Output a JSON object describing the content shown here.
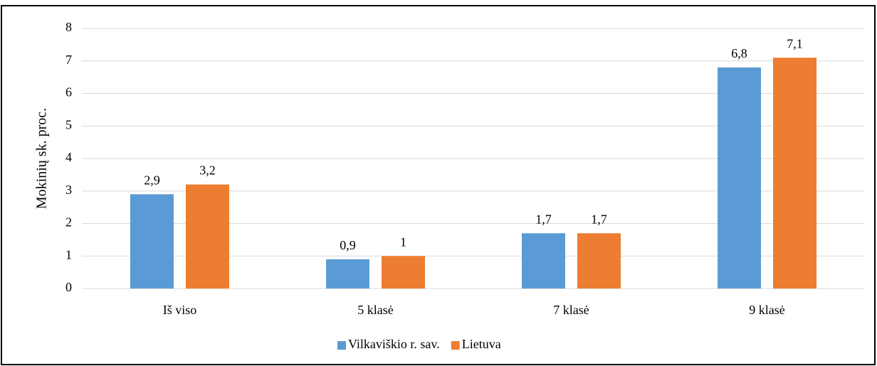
{
  "chart_data": {
    "type": "bar",
    "y_label": "Mokinių sk. proc.",
    "categories": [
      "Iš viso",
      "5 klasė",
      "7 klasė",
      "9 klasė"
    ],
    "series": [
      {
        "name": "Vilkaviškio r. sav.",
        "color": "#5b9bd5",
        "values": [
          2.9,
          0.9,
          1.7,
          6.8
        ],
        "value_labels": [
          "2,9",
          "0,9",
          "1,7",
          "6,8"
        ]
      },
      {
        "name": "Lietuva",
        "color": "#ed7d31",
        "values": [
          3.2,
          1,
          1.7,
          7.1
        ],
        "value_labels": [
          "3,2",
          "1",
          "1,7",
          "7,1"
        ]
      }
    ],
    "ylim": [
      0,
      8
    ],
    "yticks": [
      0,
      1,
      2,
      3,
      4,
      5,
      6,
      7,
      8
    ],
    "grid": true,
    "legend": "bottom"
  }
}
